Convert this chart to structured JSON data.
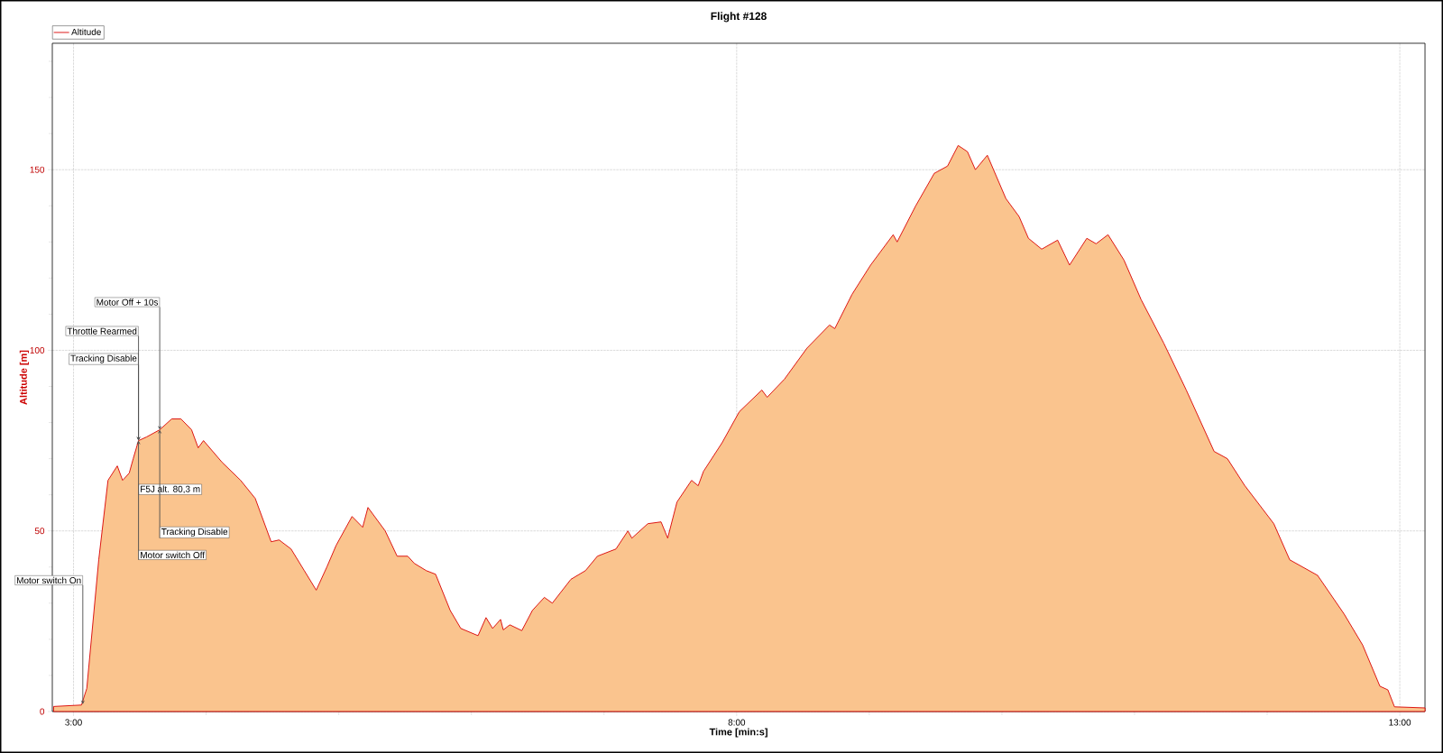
{
  "chart_data": {
    "type": "area",
    "title": "Flight #128",
    "xlabel": "Time [min:s]",
    "ylabel": "Altitude [m]",
    "x": [
      2.85,
      3.06,
      3.1,
      3.19,
      3.26,
      3.33,
      3.37,
      3.42,
      3.45,
      3.49,
      3.55,
      3.65,
      3.74,
      3.81,
      3.89,
      3.94,
      3.98,
      4.12,
      4.26,
      4.37,
      4.46,
      4.49,
      4.55,
      4.64,
      4.74,
      4.83,
      4.91,
      4.98,
      5.1,
      5.18,
      5.22,
      5.35,
      5.44,
      5.52,
      5.57,
      5.66,
      5.73,
      5.84,
      5.92,
      6.05,
      6.11,
      6.16,
      6.22,
      6.24,
      6.29,
      6.38,
      6.46,
      6.55,
      6.61,
      6.75,
      6.86,
      6.95,
      7.09,
      7.18,
      7.21,
      7.33,
      7.43,
      7.48,
      7.55,
      7.66,
      7.71,
      7.75,
      7.89,
      8.02,
      8.19,
      8.23,
      8.36,
      8.53,
      8.7,
      8.74,
      8.87,
      9.01,
      9.18,
      9.21,
      9.35,
      9.49,
      9.59,
      9.67,
      9.74,
      9.8,
      9.89,
      10.03,
      10.13,
      10.2,
      10.3,
      10.42,
      10.51,
      10.64,
      10.71,
      10.8,
      10.92,
      11.05,
      11.22,
      11.39,
      11.6,
      11.7,
      11.83,
      12.05,
      12.17,
      12.38,
      12.58,
      12.72,
      12.85,
      12.91,
      12.96,
      13.19
    ],
    "series": [
      {
        "name": "Altitude",
        "color": "#fac48e",
        "values": [
          1.4,
          1.8,
          6.4,
          42,
          64,
          68,
          64,
          66,
          70,
          75,
          76,
          78,
          81,
          81,
          78,
          73,
          75,
          69,
          64,
          59,
          50,
          47,
          47.5,
          45,
          39,
          33.6,
          40,
          46,
          54,
          51,
          56.5,
          50,
          43,
          43,
          41,
          39,
          38,
          28,
          23,
          21,
          26,
          23,
          25.5,
          22.6,
          24,
          22.4,
          28,
          31.6,
          30,
          36.6,
          39,
          43,
          45,
          50,
          48,
          52,
          52.5,
          48,
          58,
          64,
          62.5,
          66.5,
          74.4,
          83,
          89,
          87,
          92,
          100.6,
          107,
          106,
          115.5,
          123.6,
          132,
          130,
          140,
          149,
          151,
          156.7,
          155,
          150,
          154,
          142,
          137,
          131,
          128,
          130.5,
          123.6,
          131,
          129.5,
          132,
          125,
          114,
          102,
          89,
          72,
          70,
          62.6,
          52,
          42,
          37.7,
          27,
          18.4,
          7,
          6,
          1.3,
          1.0
        ]
      }
    ],
    "xlim": [
      2.84,
      13.19
    ],
    "ylim": [
      0,
      185
    ],
    "xticks": [
      {
        "value": 3,
        "label": "3:00"
      },
      {
        "value": 4,
        "label": null
      },
      {
        "value": 5,
        "label": null
      },
      {
        "value": 6,
        "label": null
      },
      {
        "value": 7,
        "label": null
      },
      {
        "value": 8,
        "label": "8:00"
      },
      {
        "value": 9,
        "label": null
      },
      {
        "value": 10,
        "label": null
      },
      {
        "value": 11,
        "label": null
      },
      {
        "value": 12,
        "label": null
      },
      {
        "value": 13,
        "label": "13:00"
      }
    ],
    "yticks": [
      0,
      {
        "value": 10,
        "label": null
      },
      {
        "value": 20,
        "label": null
      },
      {
        "value": 30,
        "label": null
      },
      {
        "value": 40,
        "label": null
      },
      50,
      {
        "value": 60,
        "label": null
      },
      {
        "value": 70,
        "label": null
      },
      {
        "value": 80,
        "label": null
      },
      {
        "value": 90,
        "label": null
      },
      100,
      {
        "value": 110,
        "label": null
      },
      {
        "value": 120,
        "label": null
      },
      {
        "value": 130,
        "label": null
      },
      {
        "value": 140,
        "label": null
      },
      150,
      {
        "value": 160,
        "label": null
      },
      {
        "value": 170,
        "label": null
      },
      {
        "value": 180,
        "label": null
      }
    ],
    "grid": true,
    "legend": "top left",
    "annotations": [
      {
        "text": "Motor switch On",
        "x": 3.07,
        "y": 2
      },
      {
        "text": "Tracking Disable",
        "x": 3.49,
        "y": 75
      },
      {
        "text": "Throttle Rearmed",
        "x": 3.49,
        "y": 75
      },
      {
        "text": "Motor Off + 10s",
        "x": 3.65,
        "y": 78
      },
      "F5J alt. 80,3 m",
      {
        "text": "Tracking Disable",
        "x": 3.65,
        "y": 78
      },
      {
        "text": "Motor switch Off",
        "x": 3.49,
        "y": 75
      }
    ]
  }
}
